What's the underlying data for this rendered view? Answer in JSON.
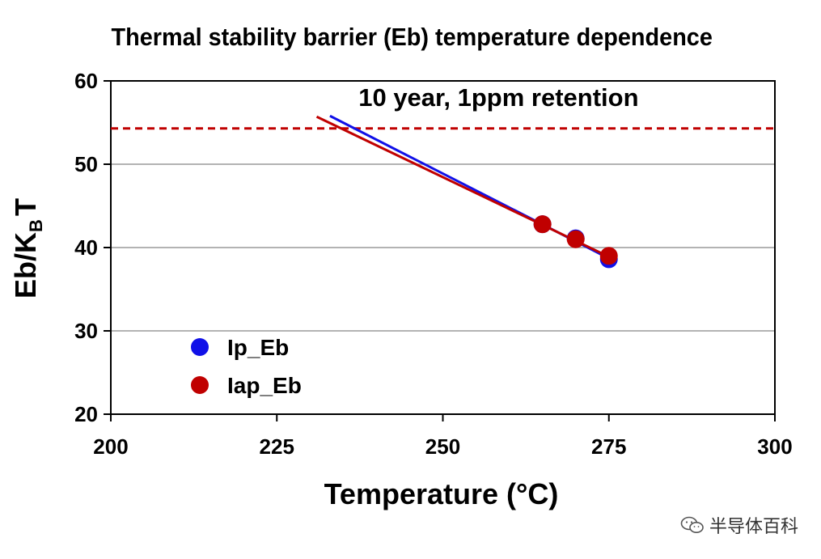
{
  "chart_data": {
    "type": "scatter",
    "title": "Thermal stability barrier (Eb) temperature dependence",
    "xlabel": "Temperature (°C)",
    "ylabel": {
      "main": "Eb/K",
      "sub": "B",
      "tail": "T"
    },
    "xlim": [
      200,
      300
    ],
    "ylim": [
      20,
      60
    ],
    "xticks": [
      "200",
      "225",
      "250",
      "275",
      "300"
    ],
    "yticks": [
      "20",
      "30",
      "40",
      "50",
      "60"
    ],
    "grid": true,
    "legend_position": "bottom-left",
    "series": [
      {
        "name": "Ip_Eb",
        "color": "#1010e8",
        "points": [
          {
            "x": 265,
            "y": 42.8
          },
          {
            "x": 270,
            "y": 41.1
          },
          {
            "x": 275,
            "y": 38.6
          }
        ],
        "fit": {
          "x": [
            233,
            275
          ],
          "y": [
            55.8,
            38.7
          ]
        }
      },
      {
        "name": "Iap_Eb",
        "color": "#c00000",
        "points": [
          {
            "x": 265,
            "y": 42.8
          },
          {
            "x": 270,
            "y": 41.0
          },
          {
            "x": 275,
            "y": 39.0
          }
        ],
        "fit": {
          "x": [
            231,
            275
          ],
          "y": [
            55.7,
            38.9
          ]
        }
      }
    ],
    "reference_line": {
      "y": 54.3,
      "label": "10 year, 1ppm retention",
      "color": "#c00000",
      "style": "dashed"
    }
  },
  "watermark": {
    "text": "半导体百科",
    "icon": "wechat-icon"
  }
}
